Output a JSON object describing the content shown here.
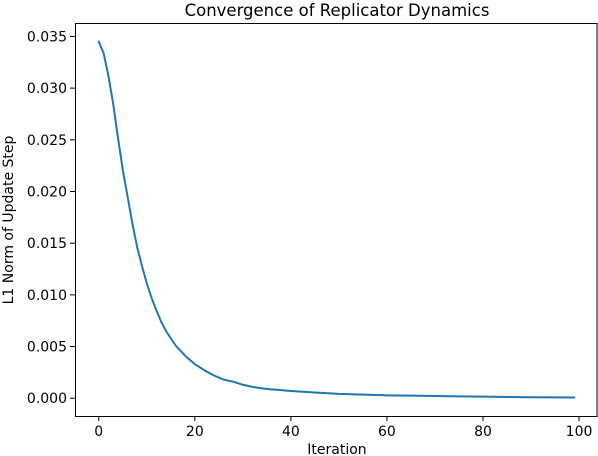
{
  "chart_data": {
    "type": "line",
    "title": "Convergence of Replicator Dynamics",
    "xlabel": "Iteration",
    "ylabel": "L1 Norm of Update Step",
    "xlim": [
      -4.95,
      103.95
    ],
    "ylim": [
      -0.00172,
      0.0363
    ],
    "xticks": [
      0,
      20,
      40,
      60,
      80,
      100
    ],
    "xtick_labels": [
      "0",
      "20",
      "40",
      "60",
      "80",
      "100"
    ],
    "yticks": [
      0.0,
      0.005,
      0.01,
      0.015,
      0.02,
      0.025,
      0.03,
      0.035
    ],
    "ytick_labels": [
      "0.000",
      "0.005",
      "0.010",
      "0.015",
      "0.020",
      "0.025",
      "0.030",
      "0.035"
    ],
    "grid": false,
    "line_color": "#1f77b4",
    "series": [
      {
        "x": [
          0,
          1,
          2,
          3,
          4,
          5,
          6,
          7,
          8,
          9,
          10,
          11,
          12,
          13,
          14,
          15,
          16,
          17,
          18,
          19,
          20,
          22,
          24,
          26,
          28,
          30,
          32,
          34,
          36,
          38,
          40,
          45,
          50,
          55,
          60,
          65,
          70,
          75,
          80,
          85,
          90,
          95,
          99
        ],
        "y": [
          0.0345,
          0.0334,
          0.0312,
          0.0285,
          0.0252,
          0.0221,
          0.0195,
          0.0169,
          0.0146,
          0.0128,
          0.0111,
          0.0097,
          0.0085,
          0.0074,
          0.0065,
          0.0058,
          0.0051,
          0.0046,
          0.0041,
          0.0037,
          0.0033,
          0.0027,
          0.0022,
          0.0018,
          0.0016,
          0.0013,
          0.0011,
          0.00095,
          0.00085,
          0.00078,
          0.0007,
          0.00055,
          0.00042,
          0.00035,
          0.00028,
          0.00025,
          0.00021,
          0.00018,
          0.00015,
          0.00012,
          0.0001,
          8e-05,
          7e-05
        ]
      }
    ]
  }
}
